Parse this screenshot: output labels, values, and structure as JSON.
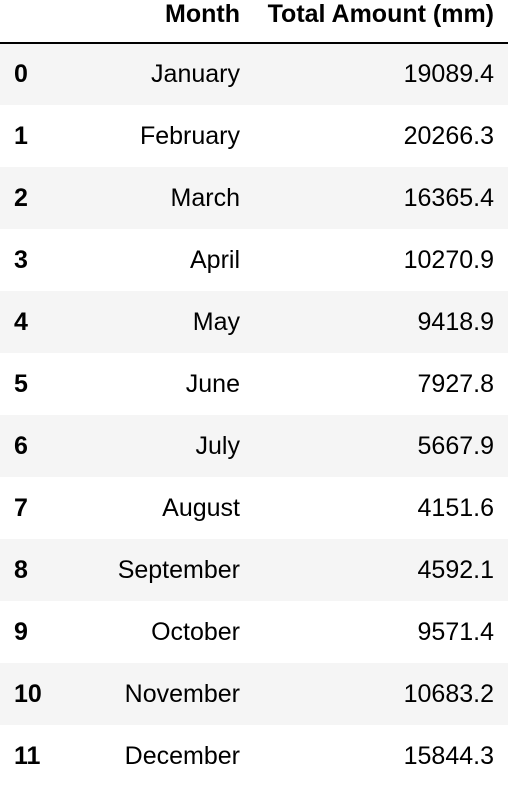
{
  "table": {
    "headers": {
      "index": "",
      "month": "Month",
      "amount": "Total Amount (mm)"
    },
    "rows": [
      {
        "index": "0",
        "month": "January",
        "amount": "19089.4"
      },
      {
        "index": "1",
        "month": "February",
        "amount": "20266.3"
      },
      {
        "index": "2",
        "month": "March",
        "amount": "16365.4"
      },
      {
        "index": "3",
        "month": "April",
        "amount": "10270.9"
      },
      {
        "index": "4",
        "month": "May",
        "amount": "9418.9"
      },
      {
        "index": "5",
        "month": "June",
        "amount": "7927.8"
      },
      {
        "index": "6",
        "month": "July",
        "amount": "5667.9"
      },
      {
        "index": "7",
        "month": "August",
        "amount": "4151.6"
      },
      {
        "index": "8",
        "month": "September",
        "amount": "4592.1"
      },
      {
        "index": "9",
        "month": "October",
        "amount": "9571.4"
      },
      {
        "index": "10",
        "month": "November",
        "amount": "10683.2"
      },
      {
        "index": "11",
        "month": "December",
        "amount": "15844.3"
      }
    ]
  }
}
